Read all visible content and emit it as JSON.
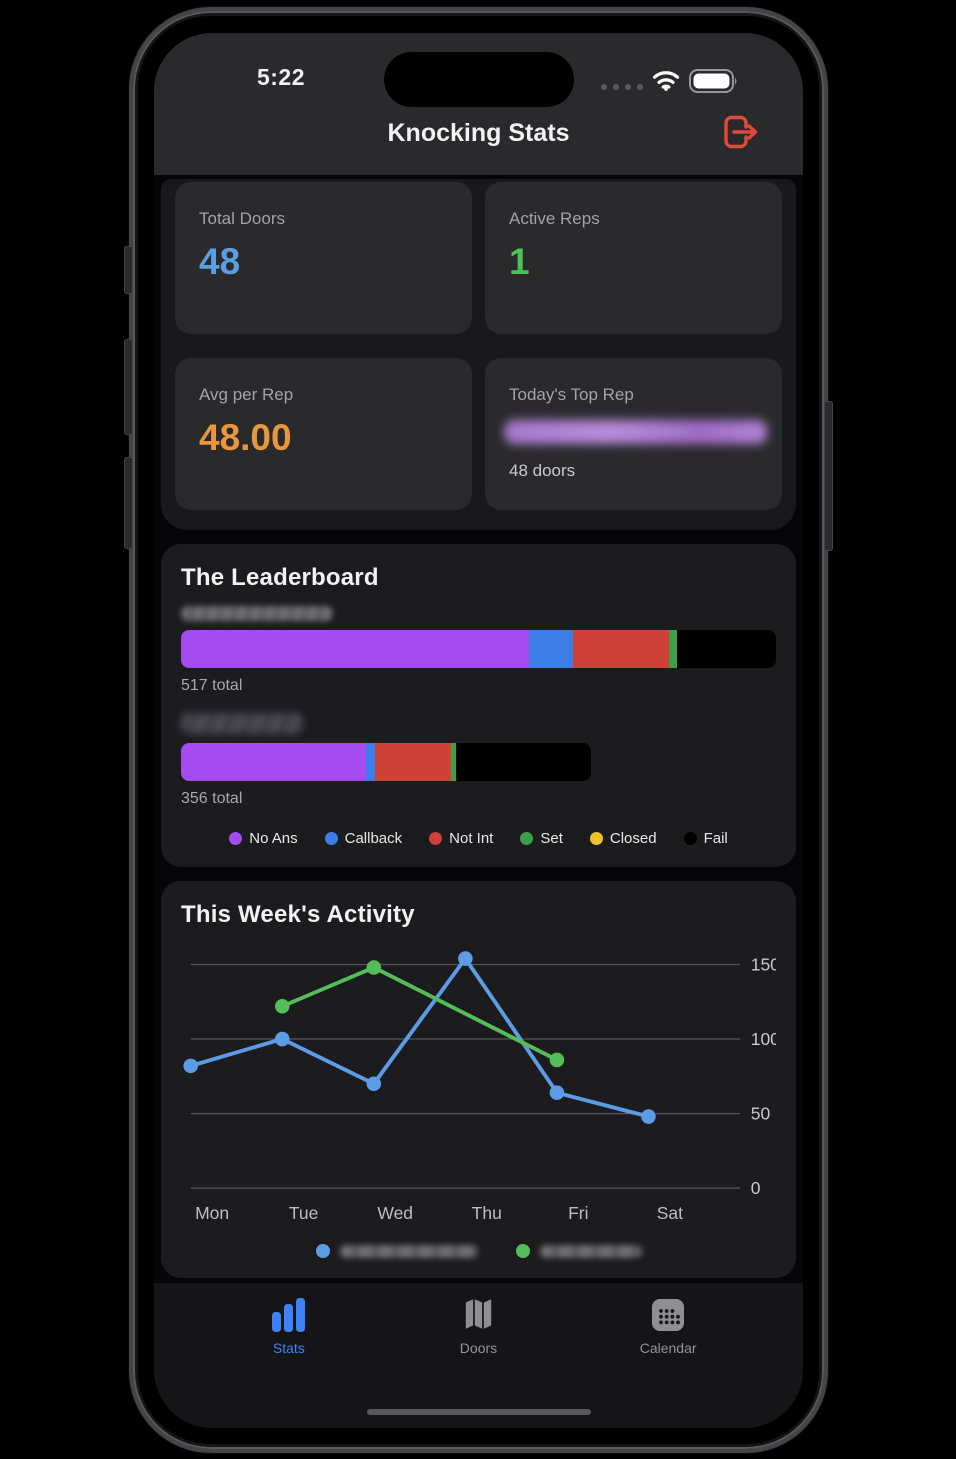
{
  "status_bar": {
    "time": "5:22"
  },
  "header": {
    "title": "Knocking Stats"
  },
  "colors": {
    "accent_blue": "#3e82f7",
    "logout_red": "#e2493d",
    "tab_inactive": "#93939a"
  },
  "stats_cards": [
    {
      "label": "Total Doors",
      "value": "48",
      "color": "#5b9fe3"
    },
    {
      "label": "Active Reps",
      "value": "1",
      "color": "#4bc455"
    },
    {
      "label": "Avg per Rep",
      "value": "48.00",
      "color": "#e8973e"
    },
    {
      "label": "Today's Top Rep",
      "value_redacted": true,
      "subtext": "48 doors"
    }
  ],
  "leaderboard": {
    "title": "The Leaderboard",
    "legend": [
      {
        "label": "No Ans",
        "color": "#a44cef"
      },
      {
        "label": "Callback",
        "color": "#3c7ee8"
      },
      {
        "label": "Not Int",
        "color": "#ce4138"
      },
      {
        "label": "Set",
        "color": "#3f9e4b"
      },
      {
        "label": "Closed",
        "color": "#edc427"
      },
      {
        "label": "Fail",
        "color": "#000000"
      }
    ],
    "reps": [
      {
        "name_redacted": true,
        "total": 517,
        "total_label": "517 total",
        "counts": [
          302,
          39,
          83,
          7,
          0,
          86
        ]
      },
      {
        "name_redacted": true,
        "total": 356,
        "total_label": "356 total",
        "counts": [
          161,
          8,
          66,
          4,
          0,
          117
        ]
      }
    ]
  },
  "chart_data": {
    "type": "line",
    "title": "This Week's Activity",
    "x": [
      "Mon",
      "Tue",
      "Wed",
      "Thu",
      "Fri",
      "Sat"
    ],
    "series": [
      {
        "name_redacted": true,
        "color": "#5c9ce6",
        "values": [
          82,
          100,
          70,
          154,
          64,
          48
        ]
      },
      {
        "name_redacted": true,
        "color": "#55bd58",
        "values": [
          null,
          122,
          148,
          null,
          86,
          null
        ]
      }
    ],
    "yticks": [
      0,
      50,
      100,
      150
    ],
    "ylim": [
      0,
      160
    ],
    "ytick_side": "right",
    "grid": true,
    "legend_position": "bottom"
  },
  "tab_bar": {
    "tabs": [
      {
        "label": "Stats",
        "icon": "bar-chart-icon",
        "active": true
      },
      {
        "label": "Doors",
        "icon": "map-icon",
        "active": false
      },
      {
        "label": "Calendar",
        "icon": "calendar-icon",
        "active": false
      }
    ]
  }
}
